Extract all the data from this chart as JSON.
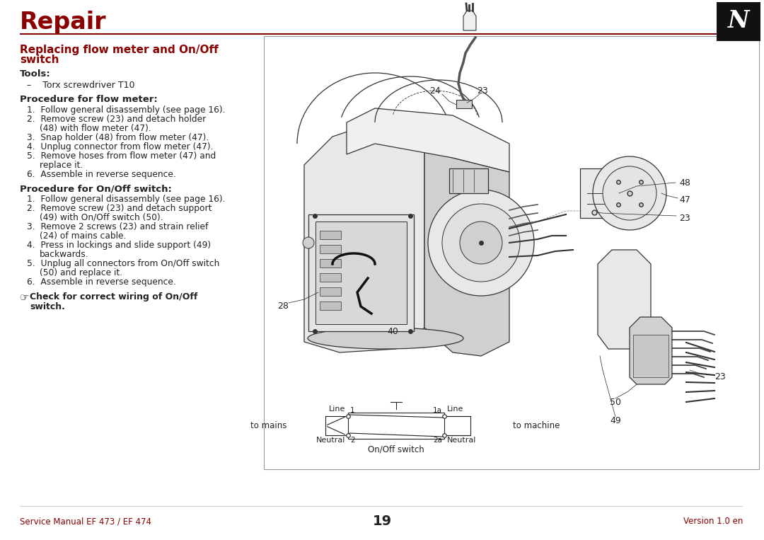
{
  "page_bg": "#ffffff",
  "dark_red": "#8B0000",
  "text_color": "#222222",
  "title": "Repair",
  "section_title_line1": "Replacing flow meter and On/Off",
  "section_title_line2": "switch",
  "tools_heading": "Tools:",
  "tools_item": "Torx screwdriver T10",
  "flow_meter_heading": "Procedure for flow meter:",
  "flow_meter_steps": [
    [
      "Follow general disassembly (see page 16)."
    ],
    [
      "Remove screw (23) and detach holder",
      "(48) with flow meter (47)."
    ],
    [
      "Snap holder (48) from flow meter (47)."
    ],
    [
      "Unplug connector from flow meter (47)."
    ],
    [
      "Remove hoses from flow meter (47) and",
      "replace it."
    ],
    [
      "Assemble in reverse sequence."
    ]
  ],
  "onoff_heading": "Procedure for On/Off switch:",
  "onoff_steps": [
    [
      "Follow general disassembly (see page 16)."
    ],
    [
      "Remove screw (23) and detach support",
      "(49) with On/Off switch (50)."
    ],
    [
      "Remove 2 screws (23) and strain relief",
      "(24) of mains cable."
    ],
    [
      "Press in lockings and slide support (49)",
      "backwards."
    ],
    [
      "Unplug all connectors from On/Off switch",
      "(50) and replace it."
    ],
    [
      "Assemble in reverse sequence."
    ]
  ],
  "note_bold": "Check for correct wiring of On/Off",
  "note_bold2": "switch.",
  "footer_left": "Service Manual EF 473 / EF 474",
  "footer_center": "19",
  "footer_right": "Version 1.0 en",
  "diag_border": "#888888",
  "diag_bg": "#ffffff",
  "line_color_dark_red": "#8B0000",
  "part_stroke": "#333333",
  "part_fill_light": "#e8e8e8",
  "part_fill_mid": "#d0d0d0",
  "part_fill_dark": "#b0b0b0"
}
